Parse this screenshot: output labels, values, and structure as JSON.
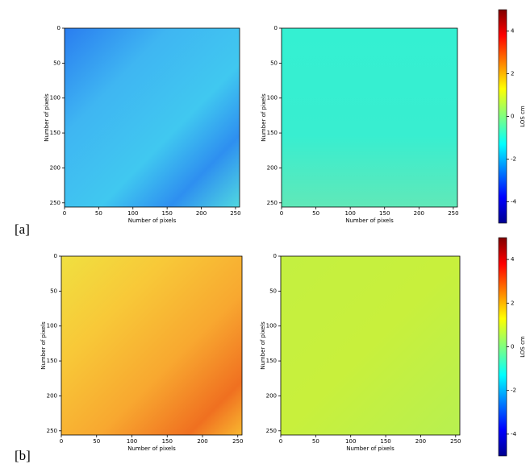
{
  "figure_labels": [
    "[a]",
    "[b]"
  ],
  "chart_data": [
    {
      "type": "heatmap",
      "xlabel": "Number of pixels",
      "ylabel": "Number of pixels",
      "xlim": [
        0,
        256
      ],
      "ylim": [
        256,
        0
      ],
      "xticks": [
        0,
        50,
        100,
        150,
        200,
        250
      ],
      "yticks": [
        0,
        50,
        100,
        150,
        200,
        250
      ]
    },
    {
      "type": "heatmap",
      "xlabel": "Number of pixels",
      "ylabel": "Number of pixels",
      "xlim": [
        0,
        256
      ],
      "ylim": [
        256,
        0
      ],
      "xticks": [
        0,
        50,
        100,
        150,
        200,
        250
      ],
      "yticks": [
        0,
        50,
        100,
        150,
        200,
        250
      ]
    },
    {
      "type": "colorbar",
      "label": "LOS cm",
      "colormap": "jet",
      "ylim": [
        -5,
        5
      ],
      "yticks": [
        -4,
        -2,
        0,
        2,
        4
      ]
    },
    {
      "type": "heatmap",
      "xlabel": "Number of pixels",
      "ylabel": "Number of pixels",
      "xlim": [
        0,
        256
      ],
      "ylim": [
        256,
        0
      ],
      "xticks": [
        0,
        50,
        100,
        150,
        200,
        250
      ],
      "yticks": [
        0,
        50,
        100,
        150,
        200,
        250
      ]
    },
    {
      "type": "heatmap",
      "xlabel": "Number of pixels",
      "ylabel": "Number of pixels",
      "xlim": [
        0,
        256
      ],
      "ylim": [
        256,
        0
      ],
      "xticks": [
        0,
        50,
        100,
        150,
        200,
        250
      ],
      "yticks": [
        0,
        50,
        100,
        150,
        200,
        250
      ]
    },
    {
      "type": "colorbar",
      "label": "LOS cm",
      "colormap": "jet",
      "ylim": [
        -5,
        5
      ],
      "yticks": [
        -4,
        -2,
        0,
        2,
        4
      ]
    }
  ]
}
